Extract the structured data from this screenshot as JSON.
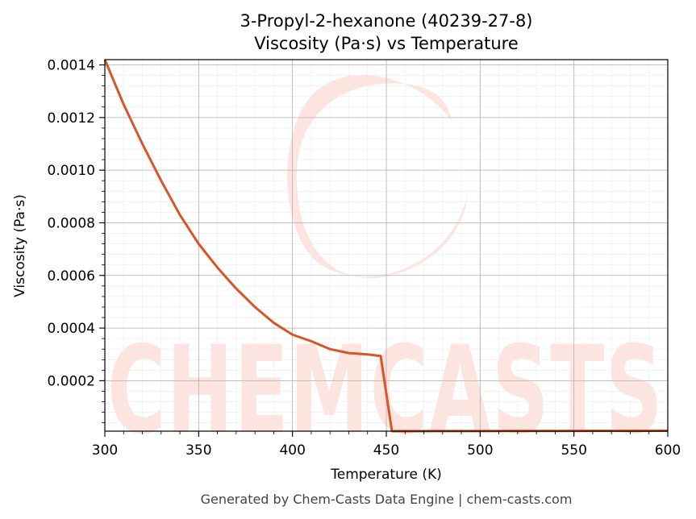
{
  "chart_data": {
    "type": "line",
    "title_line1": "3-Propyl-2-hexanone (40239-27-8)",
    "title_line2": "Viscosity (Pa·s) vs Temperature",
    "xlabel": "Temperature (K)",
    "ylabel": "Viscosity (Pa·s)",
    "xlim": [
      300,
      600
    ],
    "ylim": [
      8.3e-06,
      0.00142
    ],
    "xticks": [
      300,
      350,
      400,
      450,
      500,
      550,
      600
    ],
    "xtick_labels": [
      "300",
      "350",
      "400",
      "450",
      "500",
      "550",
      "600"
    ],
    "yticks": [
      0.0002,
      0.0004,
      0.0006,
      0.0008,
      0.001,
      0.0012,
      0.0014
    ],
    "ytick_labels": [
      "0.0002",
      "0.0004",
      "0.0006",
      "0.0008",
      "0.0010",
      "0.0012",
      "0.0014"
    ],
    "grid": true,
    "line_color": "#d95525",
    "series": [
      {
        "x": [
          300,
          310,
          320,
          330,
          340,
          350,
          360,
          370,
          380,
          390,
          400,
          410,
          420,
          430,
          440,
          447,
          453,
          460,
          480,
          500,
          520,
          540,
          560,
          580,
          600
        ],
        "values": [
          0.00142,
          0.00125,
          0.0011,
          0.00096,
          0.00083,
          0.00072,
          0.00063,
          0.00055,
          0.00048,
          0.00042,
          0.000375,
          0.00035,
          0.00032,
          0.000305,
          0.0003,
          0.000294,
          8.3e-06,
          8.4e-06,
          8.6e-06,
          8.8e-06,
          9e-06,
          9.2e-06,
          9.4e-06,
          9.6e-06,
          9.8e-06
        ]
      }
    ]
  },
  "watermark": {
    "text": "CHEMCASTS",
    "color": "#fde4df"
  },
  "footer": "Generated by Chem-Casts Data Engine | chem-casts.com"
}
